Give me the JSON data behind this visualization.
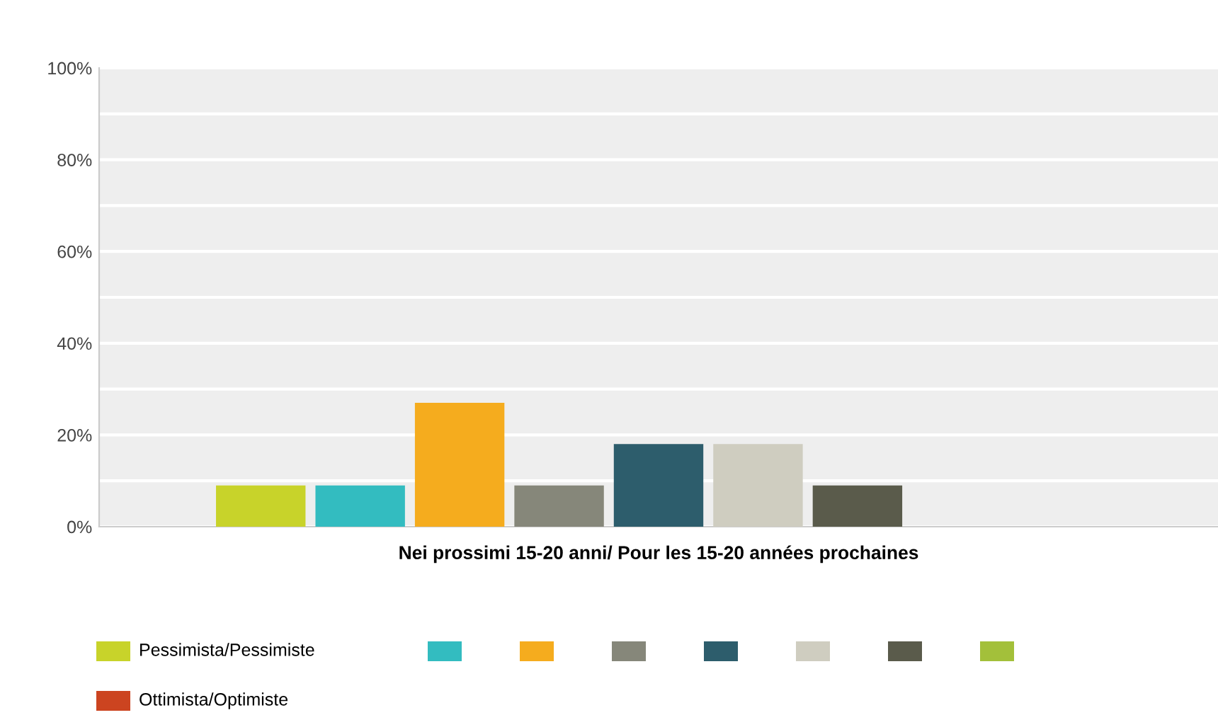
{
  "chart_data": {
    "type": "bar",
    "xlabel": "Nei prossimi 15-20 anni/ Pour les 15-20 années prochaines",
    "categories": [
      null
    ],
    "series": [
      {
        "name": "Pessimista/Pessimiste",
        "color": "#c8d32a",
        "values": [
          9
        ]
      },
      {
        "color": "#33bcc0",
        "values": [
          9
        ]
      },
      {
        "color": "#f5ac1e",
        "values": [
          27
        ]
      },
      {
        "color": "#86877a",
        "values": [
          9
        ]
      },
      {
        "color": "#2d5d6c",
        "values": [
          18
        ]
      },
      {
        "color": "#cfcdc0",
        "values": [
          18
        ]
      },
      {
        "color": "#5a5b4b",
        "values": [
          9
        ]
      },
      {
        "color": "#a3c03a",
        "values": [
          0
        ]
      },
      {
        "name": "Ottimista/Optimiste",
        "color": "#cc4420",
        "values": [
          0
        ]
      }
    ],
    "ylim": [
      0,
      100
    ],
    "yticks": [
      {
        "value": 0,
        "label": "0%"
      },
      {
        "value": 10,
        "label": null
      },
      {
        "value": 20,
        "label": "20%"
      },
      {
        "value": 30,
        "label": null
      },
      {
        "value": 40,
        "label": "40%"
      },
      {
        "value": 50,
        "label": null
      },
      {
        "value": 60,
        "label": "60%"
      },
      {
        "value": 70,
        "label": null
      },
      {
        "value": 80,
        "label": "80%"
      },
      {
        "value": 90,
        "label": null
      },
      {
        "value": 100,
        "label": "100%"
      }
    ],
    "grid": "y",
    "legend": "bottom"
  }
}
